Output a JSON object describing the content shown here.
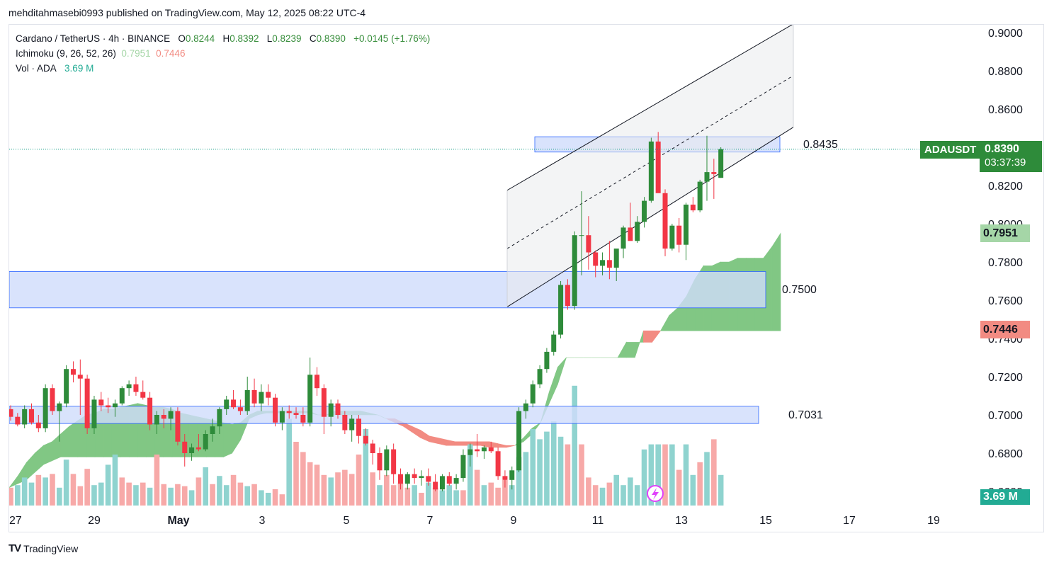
{
  "header": {
    "publisher": "mehditahmasebi0993 published on TradingView.com, May 12, 2025 08:22 UTC-4"
  },
  "legend": {
    "symbol": "Cardano / TetherUS · 4h · BINANCE",
    "o_label": "O",
    "o_value": "0.8244",
    "h_label": "H",
    "h_value": "0.8392",
    "l_label": "L",
    "l_value": "0.8239",
    "c_label": "C",
    "c_value": "0.8390",
    "change": "+0.0145 (+1.76%)",
    "ichimoku_label": "Ichimoku (9, 26, 52, 26)",
    "ichimoku_a": "0.7951",
    "ichimoku_b": "0.7446",
    "vol_label": "Vol · ADA",
    "vol_value": "3.69 M"
  },
  "price_badge": {
    "symbol": "ADAUSDT",
    "price": "0.8390",
    "countdown": "03:37:39"
  },
  "cloud_badges": {
    "span_a": "0.7951",
    "span_b": "0.7446"
  },
  "volume_badge": "3.69 M",
  "footer": {
    "brand": "TradingView",
    "logo": "TV"
  },
  "colors": {
    "up": "#089981",
    "up_candle": "#2e8b3a",
    "down": "#f23645",
    "cloud_bull": "#81c784",
    "cloud_bear": "#f28b82",
    "zone_fill": "#cfdcfb",
    "zone_border": "#2962ff",
    "vol_up": "#8fd3cf",
    "vol_down": "#f7a9a8"
  },
  "chart_data": {
    "type": "candlestick",
    "timeframe": "4h",
    "y_axis": {
      "min": 0.66,
      "max": 0.9,
      "ticks": [
        "0.9000",
        "0.8800",
        "0.8600",
        "0.8400",
        "0.8200",
        "0.8000",
        "0.7800",
        "0.7600",
        "0.7400",
        "0.7200",
        "0.7000",
        "0.6800",
        "0.6600"
      ]
    },
    "x_axis": {
      "ticks": [
        "27",
        "29",
        "May",
        "3",
        "5",
        "7",
        "9",
        "11",
        "13",
        "15",
        "17",
        "19"
      ]
    },
    "zones": [
      {
        "label": "0.8435",
        "low": 0.8375,
        "high": 0.8455
      },
      {
        "label": "0.7500",
        "low": 0.756,
        "high": 0.775
      },
      {
        "label": "0.7031",
        "low": 0.6955,
        "high": 0.7045
      }
    ],
    "channel": {
      "lower_start": 0.7565,
      "lower_end": 0.8505,
      "upper_start": 0.8175,
      "upper_end": 0.9045,
      "start": "May 9",
      "end": "May 15"
    },
    "current_price": 0.839,
    "candles": [
      [
        0.703,
        0.705,
        0.697,
        0.699
      ],
      [
        0.699,
        0.701,
        0.694,
        0.695
      ],
      [
        0.695,
        0.705,
        0.693,
        0.703
      ],
      [
        0.703,
        0.706,
        0.695,
        0.696
      ],
      [
        0.696,
        0.7,
        0.691,
        0.693
      ],
      [
        0.693,
        0.716,
        0.691,
        0.714
      ],
      [
        0.714,
        0.716,
        0.7,
        0.702
      ],
      [
        0.702,
        0.707,
        0.686,
        0.706
      ],
      [
        0.706,
        0.726,
        0.704,
        0.724
      ],
      [
        0.724,
        0.728,
        0.717,
        0.721
      ],
      [
        0.721,
        0.729,
        0.7,
        0.719
      ],
      [
        0.719,
        0.721,
        0.69,
        0.693
      ],
      [
        0.693,
        0.71,
        0.69,
        0.708
      ],
      [
        0.708,
        0.712,
        0.702,
        0.705
      ],
      [
        0.705,
        0.709,
        0.701,
        0.704
      ],
      [
        0.704,
        0.708,
        0.699,
        0.706
      ],
      [
        0.706,
        0.715,
        0.705,
        0.714
      ],
      [
        0.714,
        0.718,
        0.71,
        0.716
      ],
      [
        0.716,
        0.72,
        0.71,
        0.712
      ],
      [
        0.712,
        0.718,
        0.708,
        0.709
      ],
      [
        0.709,
        0.712,
        0.692,
        0.695
      ],
      [
        0.695,
        0.702,
        0.69,
        0.7
      ],
      [
        0.7,
        0.703,
        0.693,
        0.698
      ],
      [
        0.698,
        0.704,
        0.692,
        0.702
      ],
      [
        0.702,
        0.704,
        0.684,
        0.686
      ],
      [
        0.686,
        0.69,
        0.673,
        0.68
      ],
      [
        0.68,
        0.685,
        0.676,
        0.683
      ],
      [
        0.683,
        0.69,
        0.681,
        0.682
      ],
      [
        0.682,
        0.692,
        0.681,
        0.69
      ],
      [
        0.69,
        0.698,
        0.686,
        0.694
      ],
      [
        0.694,
        0.704,
        0.69,
        0.703
      ],
      [
        0.703,
        0.71,
        0.7,
        0.708
      ],
      [
        0.708,
        0.713,
        0.703,
        0.704
      ],
      [
        0.704,
        0.708,
        0.7,
        0.702
      ],
      [
        0.702,
        0.72,
        0.7,
        0.713
      ],
      [
        0.713,
        0.719,
        0.704,
        0.706
      ],
      [
        0.706,
        0.716,
        0.702,
        0.712
      ],
      [
        0.712,
        0.716,
        0.705,
        0.709
      ],
      [
        0.709,
        0.711,
        0.694,
        0.696
      ],
      [
        0.696,
        0.704,
        0.692,
        0.702
      ],
      [
        0.702,
        0.705,
        0.698,
        0.701
      ],
      [
        0.701,
        0.704,
        0.698,
        0.7
      ],
      [
        0.7,
        0.704,
        0.694,
        0.696
      ],
      [
        0.696,
        0.73,
        0.694,
        0.721
      ],
      [
        0.721,
        0.725,
        0.71,
        0.714
      ],
      [
        0.714,
        0.716,
        0.69,
        0.699
      ],
      [
        0.699,
        0.708,
        0.694,
        0.706
      ],
      [
        0.706,
        0.708,
        0.698,
        0.7
      ],
      [
        0.7,
        0.702,
        0.69,
        0.692
      ],
      [
        0.692,
        0.7,
        0.686,
        0.698
      ],
      [
        0.698,
        0.7,
        0.685,
        0.689
      ],
      [
        0.689,
        0.693,
        0.684,
        0.685
      ],
      [
        0.685,
        0.687,
        0.674,
        0.68
      ],
      [
        0.68,
        0.683,
        0.666,
        0.671
      ],
      [
        0.671,
        0.684,
        0.668,
        0.682
      ],
      [
        0.682,
        0.685,
        0.664,
        0.669
      ],
      [
        0.669,
        0.672,
        0.661,
        0.664
      ],
      [
        0.664,
        0.67,
        0.661,
        0.669
      ],
      [
        0.669,
        0.672,
        0.664,
        0.667
      ],
      [
        0.667,
        0.671,
        0.663,
        0.668
      ],
      [
        0.668,
        0.672,
        0.663,
        0.665
      ],
      [
        0.665,
        0.669,
        0.66,
        0.661
      ],
      [
        0.661,
        0.669,
        0.66,
        0.668
      ],
      [
        0.668,
        0.67,
        0.663,
        0.664
      ],
      [
        0.664,
        0.669,
        0.661,
        0.667
      ],
      [
        0.667,
        0.682,
        0.665,
        0.679
      ],
      [
        0.679,
        0.685,
        0.673,
        0.682
      ],
      [
        0.682,
        0.69,
        0.678,
        0.681
      ],
      [
        0.681,
        0.684,
        0.677,
        0.683
      ],
      [
        0.683,
        0.686,
        0.68,
        0.681
      ],
      [
        0.681,
        0.683,
        0.666,
        0.668
      ],
      [
        0.668,
        0.671,
        0.662,
        0.666
      ],
      [
        0.666,
        0.673,
        0.661,
        0.671
      ],
      [
        0.671,
        0.704,
        0.67,
        0.702
      ],
      [
        0.702,
        0.708,
        0.698,
        0.706
      ],
      [
        0.706,
        0.718,
        0.704,
        0.716
      ],
      [
        0.716,
        0.726,
        0.714,
        0.724
      ],
      [
        0.724,
        0.735,
        0.722,
        0.733
      ],
      [
        0.733,
        0.744,
        0.731,
        0.742
      ],
      [
        0.742,
        0.77,
        0.74,
        0.768
      ],
      [
        0.768,
        0.771,
        0.755,
        0.757
      ],
      [
        0.757,
        0.796,
        0.755,
        0.794
      ],
      [
        0.794,
        0.817,
        0.773,
        0.794
      ],
      [
        0.794,
        0.804,
        0.776,
        0.785
      ],
      [
        0.785,
        0.786,
        0.772,
        0.778
      ],
      [
        0.778,
        0.785,
        0.773,
        0.781
      ],
      [
        0.781,
        0.791,
        0.771,
        0.777
      ],
      [
        0.777,
        0.785,
        0.77,
        0.787
      ],
      [
        0.787,
        0.799,
        0.782,
        0.798
      ],
      [
        0.798,
        0.811,
        0.793,
        0.791
      ],
      [
        0.791,
        0.804,
        0.79,
        0.801
      ],
      [
        0.801,
        0.814,
        0.798,
        0.812
      ],
      [
        0.812,
        0.845,
        0.811,
        0.843
      ],
      [
        0.843,
        0.848,
        0.817,
        0.816
      ],
      [
        0.816,
        0.818,
        0.783,
        0.787
      ],
      [
        0.787,
        0.8,
        0.786,
        0.799
      ],
      [
        0.799,
        0.803,
        0.785,
        0.789
      ],
      [
        0.789,
        0.811,
        0.781,
        0.81
      ],
      [
        0.81,
        0.814,
        0.806,
        0.807
      ],
      [
        0.807,
        0.823,
        0.806,
        0.822
      ],
      [
        0.822,
        0.846,
        0.812,
        0.827
      ],
      [
        0.827,
        0.834,
        0.813,
        0.826
      ],
      [
        0.824,
        0.84,
        0.824,
        0.839
      ]
    ],
    "volume": [
      {
        "v": 0.35,
        "up": false
      },
      {
        "v": 0.4,
        "up": true
      },
      {
        "v": 0.55,
        "up": true
      },
      {
        "v": 0.45,
        "up": true
      },
      {
        "v": 0.6,
        "up": false
      },
      {
        "v": 0.55,
        "up": true
      },
      {
        "v": 0.62,
        "up": false
      },
      {
        "v": 0.35,
        "up": true
      },
      {
        "v": 0.9,
        "up": true
      },
      {
        "v": 0.62,
        "up": false
      },
      {
        "v": 0.38,
        "up": false
      },
      {
        "v": 0.72,
        "up": false
      },
      {
        "v": 0.4,
        "up": true
      },
      {
        "v": 0.45,
        "up": true
      },
      {
        "v": 0.8,
        "up": true
      },
      {
        "v": 1.0,
        "up": true
      },
      {
        "v": 0.55,
        "up": false
      },
      {
        "v": 0.45,
        "up": false
      },
      {
        "v": 0.4,
        "up": true
      },
      {
        "v": 0.45,
        "up": false
      },
      {
        "v": 0.35,
        "up": true
      },
      {
        "v": 1.0,
        "up": false
      },
      {
        "v": 0.42,
        "up": false
      },
      {
        "v": 0.35,
        "up": true
      },
      {
        "v": 0.42,
        "up": false
      },
      {
        "v": 0.38,
        "up": false
      },
      {
        "v": 0.3,
        "up": true
      },
      {
        "v": 0.55,
        "up": false
      },
      {
        "v": 0.75,
        "up": true
      },
      {
        "v": 0.42,
        "up": false
      },
      {
        "v": 0.58,
        "up": true
      },
      {
        "v": 0.4,
        "up": true
      },
      {
        "v": 0.6,
        "up": false
      },
      {
        "v": 0.45,
        "up": false
      },
      {
        "v": 0.38,
        "up": true
      },
      {
        "v": 0.42,
        "up": false
      },
      {
        "v": 0.3,
        "up": true
      },
      {
        "v": 0.25,
        "up": true
      },
      {
        "v": 0.32,
        "up": false
      },
      {
        "v": 0.22,
        "up": false
      },
      {
        "v": 1.7,
        "up": true
      },
      {
        "v": 1.25,
        "up": false
      },
      {
        "v": 1.05,
        "up": false
      },
      {
        "v": 0.85,
        "up": false
      },
      {
        "v": 0.8,
        "up": false
      },
      {
        "v": 0.6,
        "up": false
      },
      {
        "v": 0.55,
        "up": true
      },
      {
        "v": 0.65,
        "up": false
      },
      {
        "v": 0.7,
        "up": false
      },
      {
        "v": 0.62,
        "up": false
      },
      {
        "v": 1.0,
        "up": false
      },
      {
        "v": 1.5,
        "up": true
      },
      {
        "v": 0.65,
        "up": false
      },
      {
        "v": 0.4,
        "up": true
      },
      {
        "v": 0.6,
        "up": false
      },
      {
        "v": 0.4,
        "up": false
      },
      {
        "v": 0.45,
        "up": false
      },
      {
        "v": 0.35,
        "up": false
      },
      {
        "v": 0.4,
        "up": true
      },
      {
        "v": 0.25,
        "up": false
      },
      {
        "v": 0.45,
        "up": true
      },
      {
        "v": 0.35,
        "up": false
      },
      {
        "v": 0.3,
        "up": true
      },
      {
        "v": 0.4,
        "up": true
      },
      {
        "v": 0.3,
        "up": true
      },
      {
        "v": 0.3,
        "up": false
      },
      {
        "v": 1.2,
        "up": true
      },
      {
        "v": 0.7,
        "up": false
      },
      {
        "v": 0.4,
        "up": true
      },
      {
        "v": 0.45,
        "up": false
      },
      {
        "v": 0.35,
        "up": false
      },
      {
        "v": 0.5,
        "up": false
      },
      {
        "v": 0.4,
        "up": true
      },
      {
        "v": 0.95,
        "up": true
      },
      {
        "v": 1.05,
        "up": true
      },
      {
        "v": 1.5,
        "up": true
      },
      {
        "v": 1.3,
        "up": true
      },
      {
        "v": 1.45,
        "up": true
      },
      {
        "v": 1.65,
        "up": true
      },
      {
        "v": 1.35,
        "up": true
      },
      {
        "v": 1.2,
        "up": false
      },
      {
        "v": 2.35,
        "up": true
      },
      {
        "v": 1.2,
        "up": false
      },
      {
        "v": 0.55,
        "up": false
      },
      {
        "v": 0.4,
        "up": false
      },
      {
        "v": 0.35,
        "up": true
      },
      {
        "v": 0.45,
        "up": false
      },
      {
        "v": 0.6,
        "up": true
      },
      {
        "v": 0.4,
        "up": true
      },
      {
        "v": 0.55,
        "up": true
      },
      {
        "v": 0.4,
        "up": true
      },
      {
        "v": 1.1,
        "up": true
      },
      {
        "v": 1.2,
        "up": true
      },
      {
        "v": 1.2,
        "up": true
      },
      {
        "v": 1.2,
        "up": false
      },
      {
        "v": 1.2,
        "up": true
      },
      {
        "v": 0.7,
        "up": false
      },
      {
        "v": 1.2,
        "up": true
      },
      {
        "v": 0.6,
        "up": true
      },
      {
        "v": 0.85,
        "up": false
      },
      {
        "v": 1.05,
        "up": true
      },
      {
        "v": 1.3,
        "up": false
      },
      {
        "v": 0.6,
        "up": true
      }
    ],
    "cloud": {
      "span_a": [
        0.662,
        0.668,
        0.675,
        0.68,
        0.684,
        0.686,
        0.69,
        0.694,
        0.697,
        0.7,
        0.701,
        0.703,
        0.703,
        0.704,
        0.705,
        0.706,
        0.705,
        0.704,
        0.704,
        0.703,
        0.701,
        0.7,
        0.699,
        0.698,
        0.697,
        0.696,
        0.695,
        0.696,
        0.7,
        0.702,
        0.702,
        0.702,
        0.702,
        0.702,
        0.702,
        0.702,
        0.7,
        0.7,
        0.702,
        0.702,
        0.702,
        0.702,
        0.701,
        0.7,
        0.698,
        0.696,
        0.694,
        0.691,
        0.688,
        0.686,
        0.685,
        0.684,
        0.684,
        0.684,
        0.684,
        0.684,
        0.683,
        0.683,
        0.683,
        0.684,
        0.688,
        0.693,
        0.696,
        0.712,
        0.725,
        0.73,
        0.73,
        0.73,
        0.73,
        0.73,
        0.73,
        0.73,
        0.738,
        0.738,
        0.738,
        0.738,
        0.744,
        0.752,
        0.756,
        0.762,
        0.771,
        0.778,
        0.778,
        0.78,
        0.78,
        0.782,
        0.782,
        0.782,
        0.782,
        0.788,
        0.795
      ],
      "span_b": [
        0.662,
        0.664,
        0.666,
        0.67,
        0.674,
        0.676,
        0.678,
        0.678,
        0.678,
        0.678,
        0.678,
        0.678,
        0.678,
        0.678,
        0.678,
        0.678,
        0.678,
        0.678,
        0.678,
        0.678,
        0.678,
        0.678,
        0.678,
        0.678,
        0.678,
        0.678,
        0.68,
        0.687,
        0.698,
        0.7,
        0.701,
        0.701,
        0.701,
        0.701,
        0.701,
        0.701,
        0.7,
        0.7,
        0.7,
        0.7,
        0.7,
        0.7,
        0.7,
        0.7,
        0.698,
        0.698,
        0.696,
        0.694,
        0.692,
        0.689,
        0.688,
        0.687,
        0.686,
        0.686,
        0.686,
        0.686,
        0.686,
        0.685,
        0.684,
        0.684,
        0.686,
        0.69,
        0.696,
        0.706,
        0.716,
        0.73,
        0.73,
        0.73,
        0.73,
        0.73,
        0.73,
        0.73,
        0.73,
        0.73,
        0.744,
        0.744,
        0.744,
        0.744,
        0.744,
        0.744,
        0.744,
        0.744,
        0.744,
        0.744,
        0.744,
        0.744,
        0.744,
        0.744,
        0.744,
        0.744,
        0.744
      ]
    }
  }
}
